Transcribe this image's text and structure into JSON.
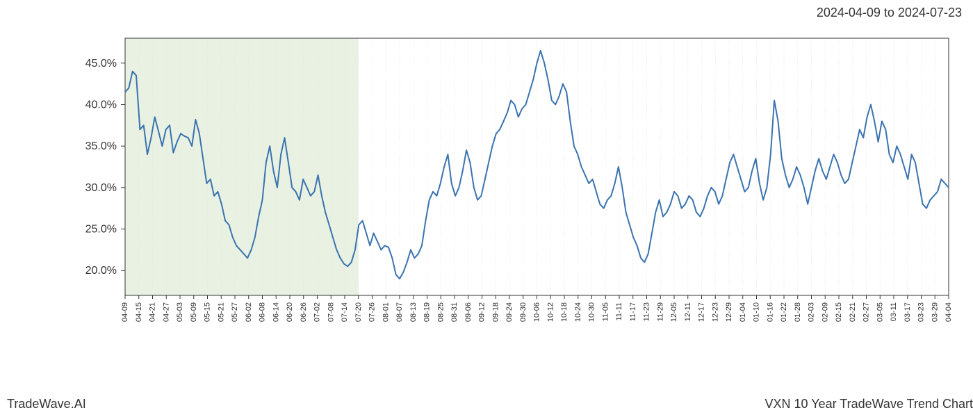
{
  "header": {
    "date_range": "2024-04-09 to 2024-07-23"
  },
  "footer": {
    "left": "TradeWave.AI",
    "right": "VXN 10 Year TradeWave Trend Chart"
  },
  "chart": {
    "type": "line",
    "line_color": "#3a73af",
    "line_width": 2,
    "background_color": "#ffffff",
    "grid_color": "#e5e5e5",
    "axis_color": "#333333",
    "highlight_band": {
      "color": "#d8e8cf",
      "opacity": 0.6,
      "x_start_index": 0,
      "x_end_index": 17
    },
    "y_axis": {
      "min": 17,
      "max": 48,
      "ticks": [
        20.0,
        25.0,
        30.0,
        35.0,
        40.0,
        45.0
      ],
      "tick_labels": [
        "20.0%",
        "25.0%",
        "30.0%",
        "35.0%",
        "40.0%",
        "45.0%"
      ],
      "label_fontsize": 16
    },
    "x_axis": {
      "labels": [
        "04-09",
        "04-15",
        "04-21",
        "04-27",
        "05-03",
        "05-09",
        "05-15",
        "05-21",
        "05-27",
        "06-02",
        "06-08",
        "06-14",
        "06-20",
        "06-26",
        "07-02",
        "07-08",
        "07-14",
        "07-20",
        "07-26",
        "08-01",
        "08-07",
        "08-13",
        "08-19",
        "08-25",
        "08-31",
        "09-06",
        "09-12",
        "09-18",
        "09-24",
        "09-30",
        "10-06",
        "10-12",
        "10-18",
        "10-24",
        "10-30",
        "11-05",
        "11-11",
        "11-17",
        "11-23",
        "11-29",
        "12-05",
        "12-11",
        "12-17",
        "12-23",
        "12-29",
        "01-04",
        "01-10",
        "01-16",
        "01-22",
        "01-28",
        "02-03",
        "02-09",
        "02-15",
        "02-21",
        "02-27",
        "03-05",
        "03-11",
        "03-17",
        "03-23",
        "03-29",
        "04-04"
      ],
      "label_fontsize": 11,
      "label_rotation": -90
    },
    "series": {
      "name": "VXN",
      "values": [
        41.5,
        42.0,
        44.0,
        43.5,
        37.0,
        37.5,
        34.0,
        36.0,
        38.5,
        36.8,
        35.0,
        37.0,
        37.5,
        34.2,
        35.5,
        36.5,
        36.2,
        36.0,
        35.0,
        38.2,
        36.5,
        33.5,
        30.5,
        31.0,
        29.0,
        29.5,
        28.0,
        26.0,
        25.5,
        24.0,
        23.0,
        22.5,
        22.0,
        21.5,
        22.5,
        24.0,
        26.5,
        28.5,
        33.0,
        35.0,
        32.0,
        30.0,
        34.0,
        36.0,
        33.0,
        30.0,
        29.5,
        28.5,
        31.0,
        30.0,
        29.0,
        29.5,
        31.5,
        29.0,
        27.0,
        25.5,
        24.0,
        22.5,
        21.5,
        20.8,
        20.5,
        21.0,
        22.5,
        25.5,
        26.0,
        24.5,
        23.0,
        24.5,
        23.5,
        22.5,
        23.0,
        22.8,
        21.5,
        19.5,
        19.0,
        19.8,
        21.0,
        22.5,
        21.5,
        22.0,
        23.0,
        26.0,
        28.5,
        29.5,
        29.0,
        30.5,
        32.5,
        34.0,
        30.5,
        29.0,
        30.0,
        32.0,
        34.5,
        33.0,
        30.0,
        28.5,
        29.0,
        31.0,
        33.0,
        35.0,
        36.5,
        37.0,
        38.0,
        39.0,
        40.5,
        40.0,
        38.5,
        39.5,
        40.0,
        41.5,
        43.0,
        45.0,
        46.5,
        45.0,
        43.0,
        40.5,
        40.0,
        41.0,
        42.5,
        41.5,
        38.0,
        35.0,
        34.0,
        32.5,
        31.5,
        30.5,
        31.0,
        29.5,
        28.0,
        27.5,
        28.5,
        29.0,
        30.5,
        32.5,
        30.0,
        27.0,
        25.5,
        24.0,
        23.0,
        21.5,
        21.0,
        22.0,
        24.5,
        27.0,
        28.5,
        26.5,
        27.0,
        28.0,
        29.5,
        29.0,
        27.5,
        28.0,
        29.0,
        28.5,
        27.0,
        26.5,
        27.5,
        29.0,
        30.0,
        29.5,
        28.0,
        29.0,
        31.0,
        33.0,
        34.0,
        32.5,
        31.0,
        29.5,
        30.0,
        32.0,
        33.5,
        30.5,
        28.5,
        30.0,
        34.0,
        40.5,
        38.0,
        33.5,
        31.5,
        30.0,
        31.0,
        32.5,
        31.5,
        30.0,
        28.0,
        30.0,
        32.0,
        33.5,
        32.0,
        31.0,
        32.5,
        34.0,
        33.0,
        31.5,
        30.5,
        31.0,
        33.0,
        35.0,
        37.0,
        36.0,
        38.5,
        40.0,
        38.0,
        35.5,
        38.0,
        37.0,
        34.0,
        33.0,
        35.0,
        34.0,
        32.5,
        31.0,
        34.0,
        33.0,
        30.5,
        28.0,
        27.5,
        28.5,
        29.0,
        29.5,
        31.0,
        30.5,
        30.0
      ]
    }
  }
}
